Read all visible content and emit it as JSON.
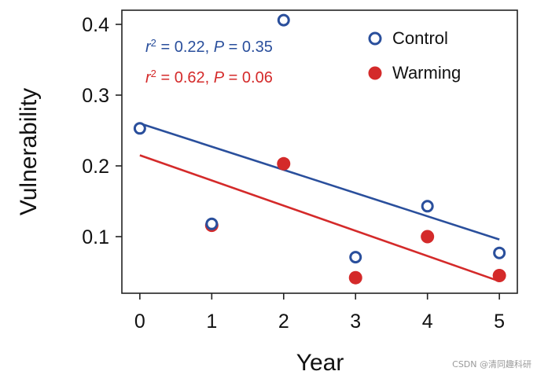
{
  "chart_data": {
    "type": "scatter",
    "title": "",
    "xlabel": "Year",
    "ylabel": "Vulnerability",
    "xlim": [
      -0.25,
      5.25
    ],
    "ylim": [
      0.02,
      0.42
    ],
    "xticks": [
      0,
      1,
      2,
      3,
      4,
      5
    ],
    "yticks": [
      0.1,
      0.2,
      0.3,
      0.4
    ],
    "xtick_labels": [
      "0",
      "1",
      "2",
      "3",
      "4",
      "5"
    ],
    "ytick_labels": [
      "0.1",
      "0.2",
      "0.3",
      "0.4"
    ],
    "grid": false,
    "legend_position": "top-right",
    "series": [
      {
        "name": "Control",
        "marker": "open-circle",
        "color": "#2a4f9c",
        "x": [
          0,
          1,
          2,
          3,
          4,
          5
        ],
        "y": [
          0.253,
          0.118,
          0.406,
          0.071,
          0.143,
          0.077
        ],
        "fit": {
          "x": [
            0,
            5
          ],
          "y": [
            0.26,
            0.096
          ]
        },
        "stats": {
          "r2_label": "r",
          "r2_sup": "2",
          "r2_value": " = 0.22, ",
          "p_label": "P",
          "p_value": " = 0.35"
        }
      },
      {
        "name": "Warming",
        "marker": "filled-circle",
        "color": "#d42a2a",
        "x": [
          0,
          1,
          2,
          3,
          4,
          5
        ],
        "y": [
          null,
          0.116,
          0.203,
          0.042,
          0.1,
          0.045
        ],
        "fit": {
          "x": [
            0,
            5
          ],
          "y": [
            0.215,
            0.037
          ]
        },
        "stats": {
          "r2_label": "r",
          "r2_sup": "2",
          "r2_value": " = 0.62, ",
          "p_label": "P",
          "p_value": " = 0.06"
        }
      }
    ]
  },
  "watermark": "CSDN @清同趣科研"
}
